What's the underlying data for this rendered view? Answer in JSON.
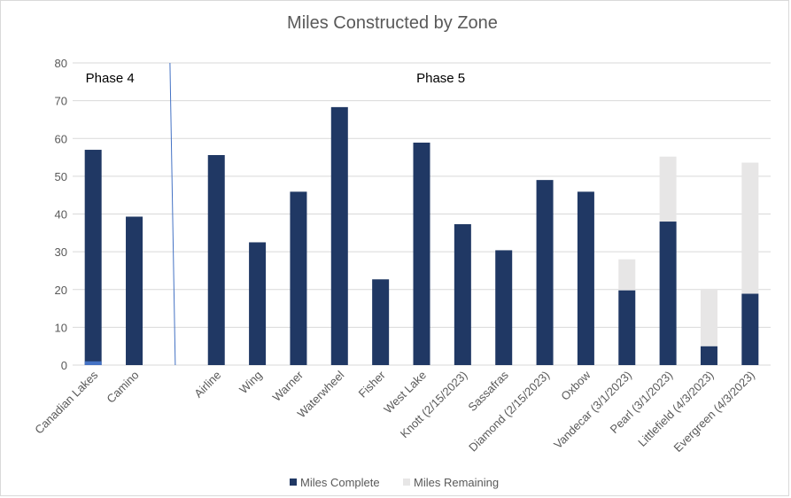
{
  "chart_data": {
    "type": "bar",
    "stacked": true,
    "title": "Miles Constructed by Zone",
    "xlabel": "",
    "ylabel": "",
    "ylim": [
      0,
      80
    ],
    "yticks": [
      0,
      10,
      20,
      30,
      40,
      50,
      60,
      70,
      80
    ],
    "grid": true,
    "legend_position": "bottom",
    "categories": [
      "Canadian Lakes",
      "Camino",
      "",
      "Airline",
      "Wing",
      "Warner",
      "Waterwheel",
      "Fisher",
      "West Lake",
      "Knott (2/15/2023)",
      "Sassafras",
      "Diamond (2/15/2023)",
      "Oxbow",
      "Vandecar (3/1/2023)",
      "Pearl (3/1/2023)",
      "Littlefield (4/3/2023)",
      "Evergreen (4/3/2023)"
    ],
    "series": [
      {
        "name": "Miles Complete",
        "color": "#203864",
        "values": [
          57,
          39.3,
          0,
          55.6,
          32.5,
          45.9,
          68.3,
          22.7,
          58.9,
          37.3,
          30.4,
          49,
          45.9,
          19.8,
          38,
          5,
          18.9
        ]
      },
      {
        "name": "Miles Remaining",
        "color": "#e7e6e6",
        "values": [
          0,
          0,
          0,
          0,
          0,
          0,
          0,
          0,
          0,
          0,
          0,
          0,
          0,
          8.2,
          17.2,
          15.2,
          34.7
        ]
      }
    ],
    "annotations": [
      {
        "text": "Phase 4",
        "category": "Canadian Lakes",
        "y": 76
      },
      {
        "text": "Phase 5",
        "category": "Fisher",
        "y": 76
      }
    ],
    "divider": {
      "color": "#4472c4",
      "between": [
        "Camino",
        "Airline"
      ]
    },
    "highlight": {
      "category": "Canadian Lakes",
      "value": 1,
      "color": "#4472c4"
    }
  },
  "colors": {
    "grid": "#d9d9d9",
    "text": "#595959",
    "title": "#595959",
    "annotation": "#000000"
  }
}
